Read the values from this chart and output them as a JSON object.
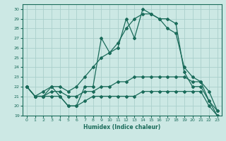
{
  "xlabel": "Humidex (Indice chaleur)",
  "xlim": [
    -0.5,
    23.5
  ],
  "ylim": [
    19,
    30.5
  ],
  "yticks": [
    19,
    20,
    21,
    22,
    23,
    24,
    25,
    26,
    27,
    28,
    29,
    30
  ],
  "xticks": [
    0,
    1,
    2,
    3,
    4,
    5,
    6,
    7,
    8,
    9,
    10,
    11,
    12,
    13,
    14,
    15,
    16,
    17,
    18,
    19,
    20,
    21,
    22,
    23
  ],
  "bg_color": "#cce8e4",
  "line_color": "#1a6b5a",
  "grid_color": "#aacfcb",
  "line1": [
    22,
    21,
    21,
    22,
    21,
    20,
    20,
    22,
    22,
    27,
    25.5,
    26,
    29,
    27,
    30,
    29.5,
    29,
    29,
    28.5,
    23.5,
    22,
    22,
    20.5,
    19
  ],
  "line2": [
    22,
    21,
    21.5,
    22,
    22,
    21.5,
    22,
    23,
    24,
    25,
    25.5,
    26.5,
    28,
    29,
    29.5,
    29.5,
    29,
    28,
    27.5,
    24,
    23,
    22.5,
    21.5,
    19.5
  ],
  "line3": [
    22,
    21,
    21,
    21.5,
    21.5,
    21,
    21,
    21.5,
    21.5,
    22,
    22,
    22.5,
    22.5,
    23,
    23,
    23,
    23,
    23,
    23,
    23,
    22.5,
    22.5,
    20.5,
    19.5
  ],
  "line4": [
    22,
    21,
    21,
    21,
    21,
    20,
    20,
    20.5,
    21,
    21,
    21,
    21,
    21,
    21,
    21.5,
    21.5,
    21.5,
    21.5,
    21.5,
    21.5,
    21.5,
    21.5,
    20,
    19
  ]
}
